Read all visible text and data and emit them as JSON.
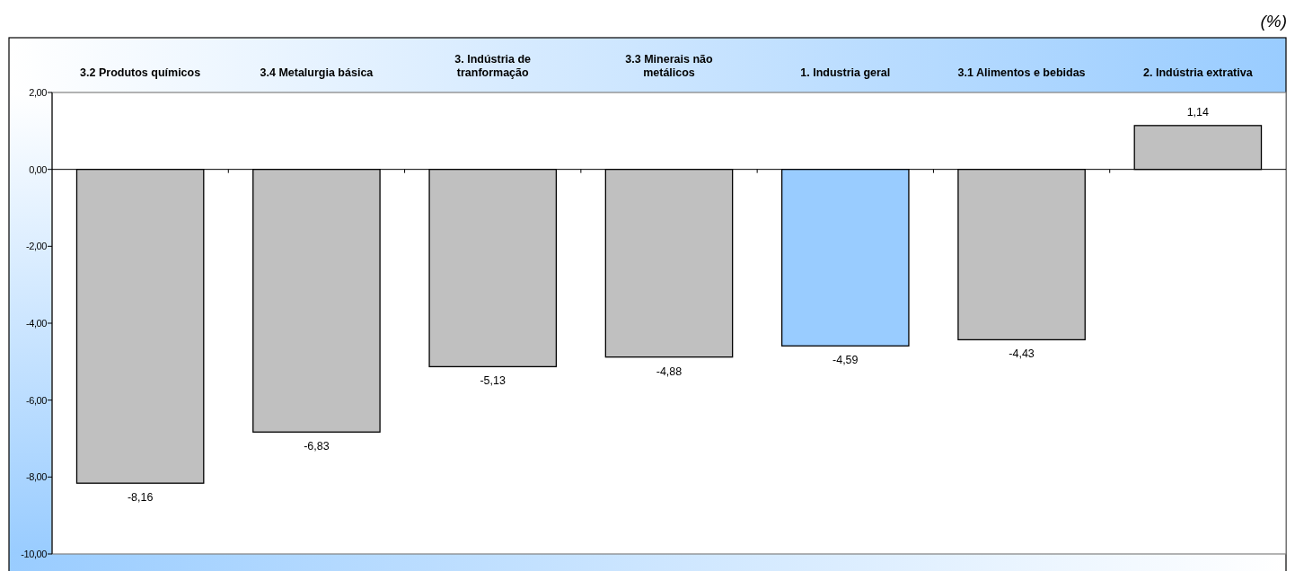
{
  "chart_data": {
    "type": "bar",
    "categories": [
      "3.2 Produtos químicos",
      "3.4 Metalurgia básica",
      "3. Indústria de tranformação",
      "3.3 Minerais não metálicos",
      "1. Industria geral",
      "3.1 Alimentos e bebidas",
      "2. Indústria extrativa"
    ],
    "values": [
      -8.16,
      -6.83,
      -5.13,
      -4.88,
      -4.59,
      -4.43,
      1.14
    ],
    "colors": [
      "#c0c0c0",
      "#c0c0c0",
      "#c0c0c0",
      "#c0c0c0",
      "#99ccff",
      "#c0c0c0",
      "#c0c0c0"
    ],
    "value_labels": [
      "-8,16",
      "-6,83",
      "-5,13",
      "-4,88",
      "-4,59",
      "-4,43",
      "1,14"
    ],
    "ylim": [
      -10,
      2
    ],
    "yticks": [
      {
        "value": 2,
        "label": "2,00"
      },
      {
        "value": 0,
        "label": "0,00"
      },
      {
        "value": -2,
        "label": "-2,00"
      },
      {
        "value": -4,
        "label": "-4,00"
      },
      {
        "value": -6,
        "label": "-6,00"
      },
      {
        "value": -8,
        "label": "-8,00"
      },
      {
        "value": -10,
        "label": "-10,00"
      }
    ],
    "annotations": [
      "(%)"
    ]
  }
}
